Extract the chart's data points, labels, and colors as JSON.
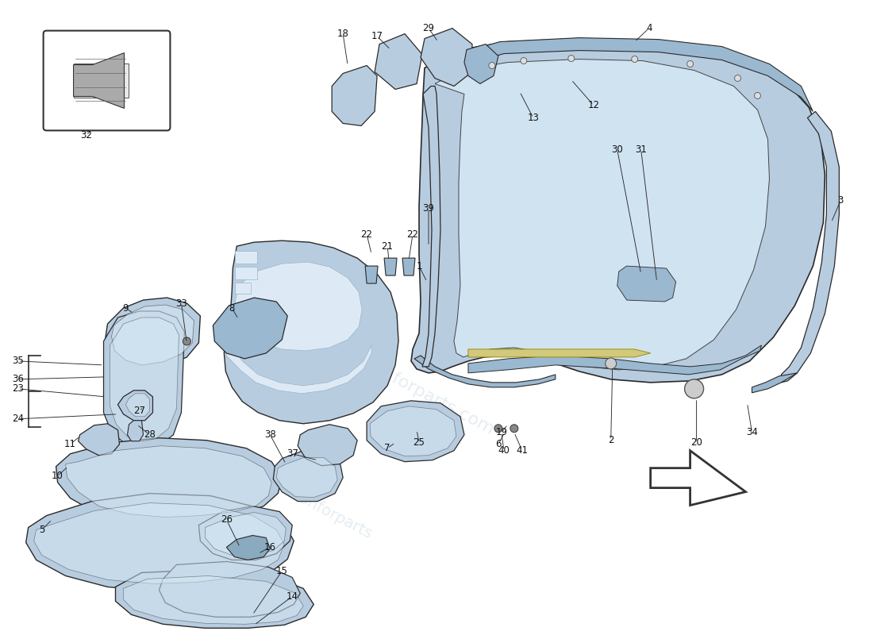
{
  "bg": "#ffffff",
  "pc": "#b8cce0",
  "pc2": "#9ab8d0",
  "pcl": "#d5e8f5",
  "pcd": "#8aaabf",
  "oc": "#2a2a2a",
  "lc": "#111111",
  "figsize": [
    11.0,
    8.0
  ],
  "dpi": 100,
  "xlim": [
    0,
    1100
  ],
  "ylim": [
    800,
    0
  ]
}
